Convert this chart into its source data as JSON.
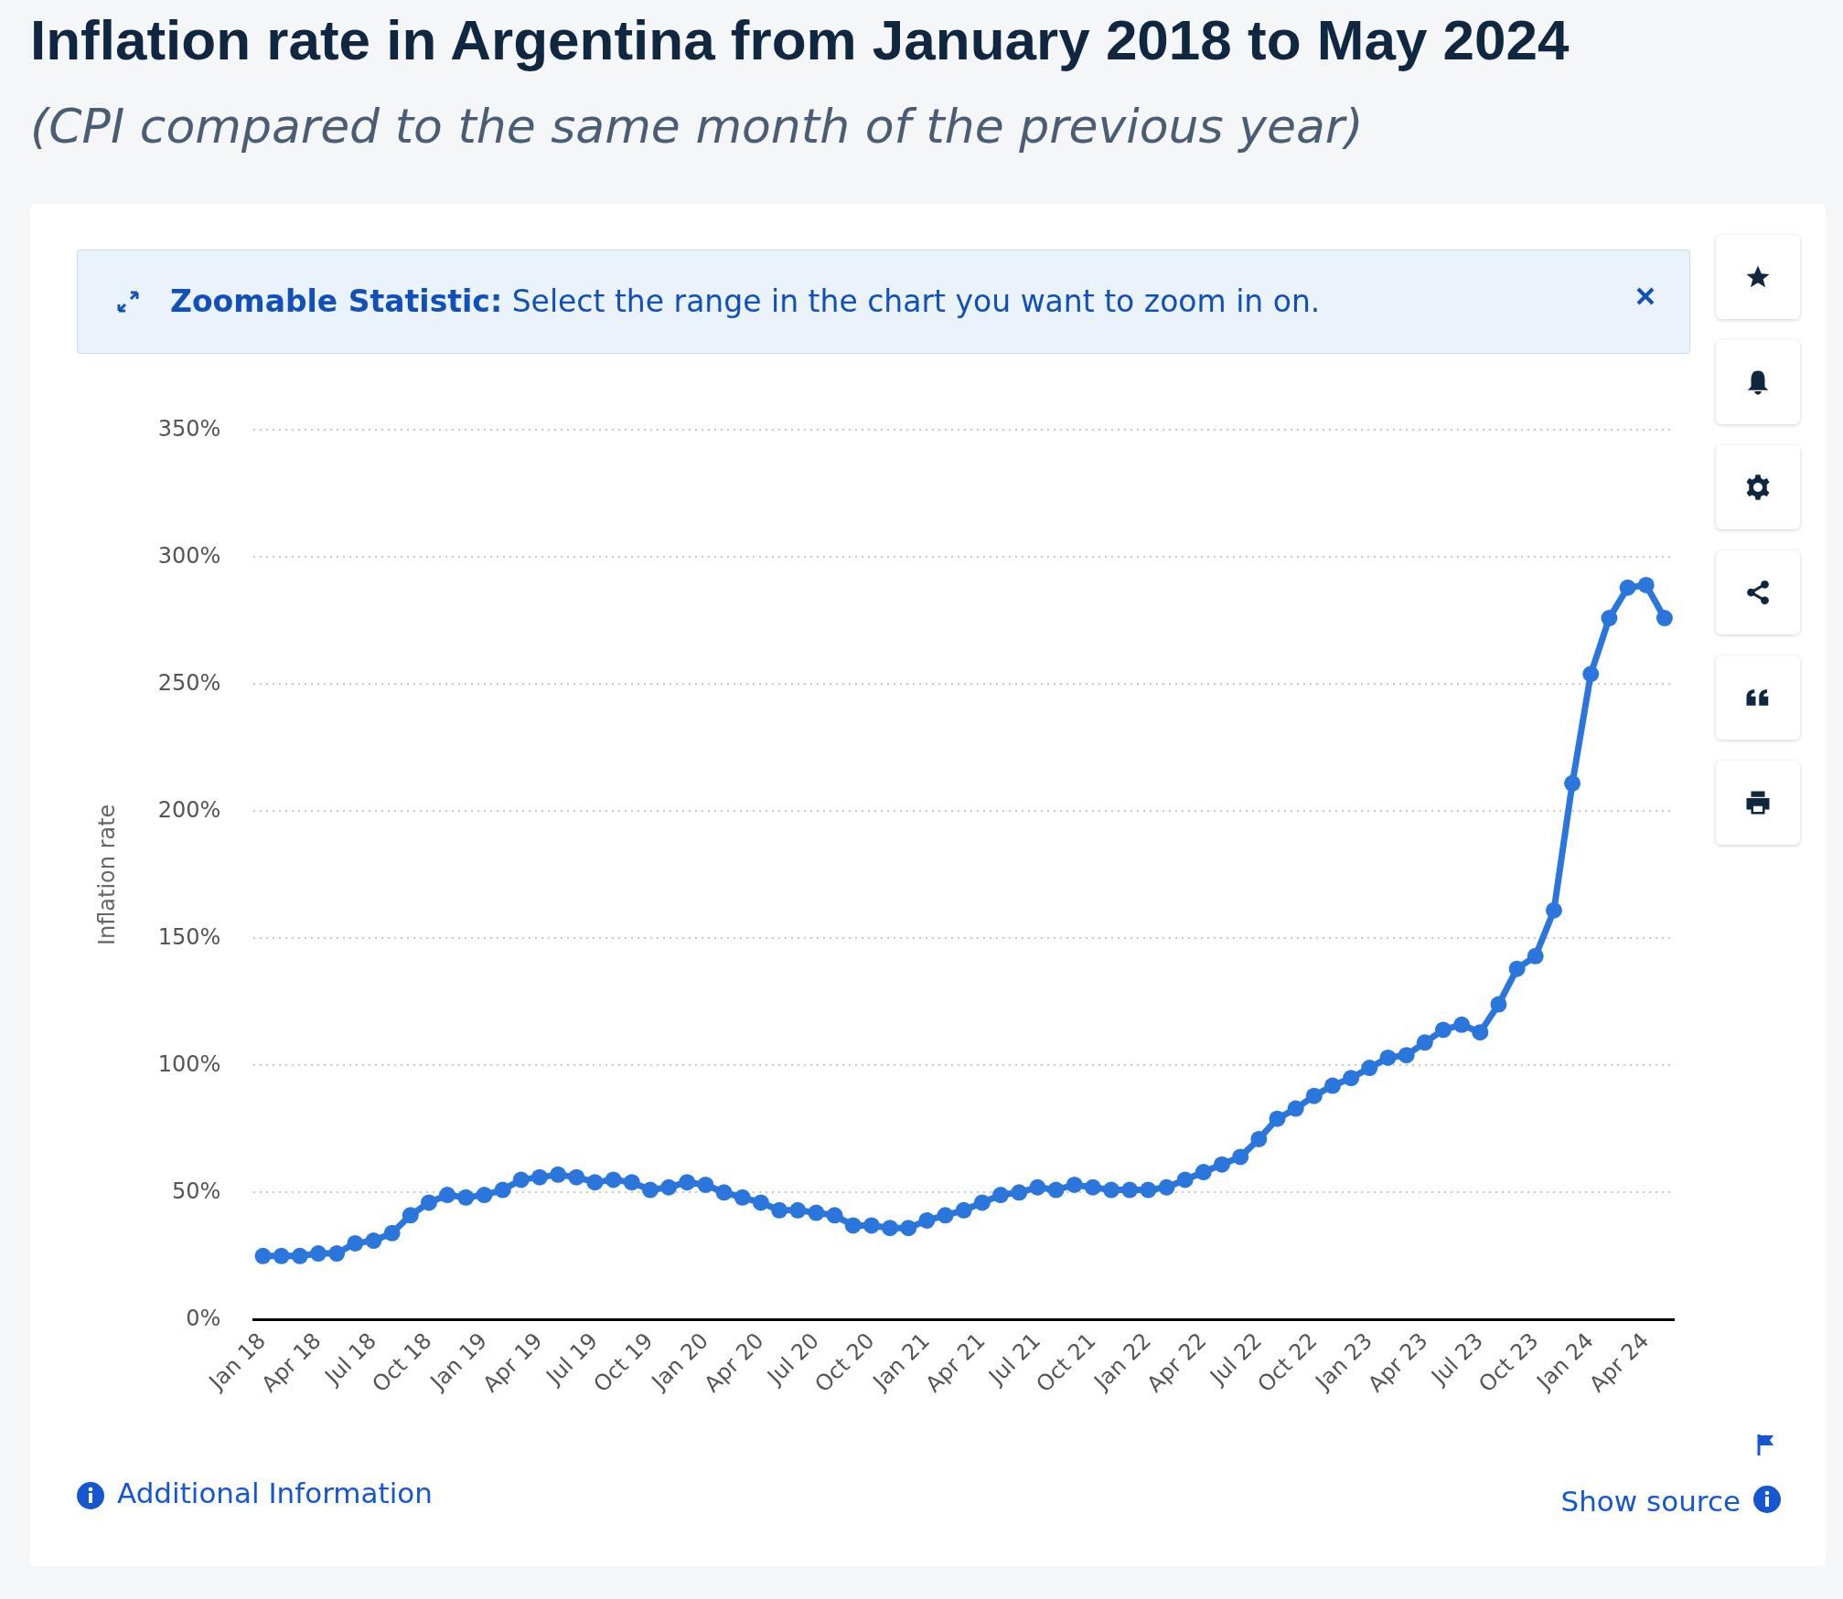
{
  "chart_data": {
    "type": "line",
    "title": "Inflation rate in Argentina from January 2018 to May 2024",
    "subtitle": "(CPI compared to the same month of the previous year)",
    "ylabel": "Inflation rate",
    "categories": [
      "Jan 18",
      null,
      null,
      "Apr 18",
      null,
      null,
      "Jul 18",
      null,
      null,
      "Oct 18",
      null,
      null,
      "Jan 19",
      null,
      null,
      "Apr 19",
      null,
      null,
      "Jul 19",
      null,
      null,
      "Oct 19",
      null,
      null,
      "Jan 20",
      null,
      null,
      "Apr 20",
      null,
      null,
      "Jul 20",
      null,
      null,
      "Oct 20",
      null,
      null,
      "Jan 21",
      null,
      null,
      "Apr 21",
      null,
      null,
      "Jul 21",
      null,
      null,
      "Oct 21",
      null,
      null,
      "Jan 22",
      null,
      null,
      "Apr 22",
      null,
      null,
      "Jul 22",
      null,
      null,
      "Oct 22",
      null,
      null,
      "Jan 23",
      null,
      null,
      "Apr 23",
      null,
      null,
      "Jul 23",
      null,
      null,
      "Oct 23",
      null,
      null,
      "Jan 24",
      null,
      null,
      "Apr 24",
      null
    ],
    "series": [
      {
        "color": "#2a76dd",
        "values": [
          25,
          25,
          25,
          26,
          26,
          30,
          31,
          34,
          41,
          46,
          49,
          48,
          49,
          51,
          55,
          56,
          57,
          56,
          54,
          55,
          54,
          51,
          52,
          54,
          53,
          50,
          48,
          46,
          43,
          43,
          42,
          41,
          37,
          37,
          36,
          36,
          39,
          41,
          43,
          46,
          49,
          50,
          52,
          51,
          53,
          52,
          51,
          51,
          51,
          52,
          55,
          58,
          61,
          64,
          71,
          79,
          83,
          88,
          92,
          95,
          99,
          103,
          104,
          109,
          114,
          116,
          113,
          124,
          138,
          143,
          161,
          211,
          254,
          276,
          288,
          289,
          276
        ]
      }
    ],
    "ylim": [
      0,
      350
    ],
    "yticks": [
      {
        "value": 0,
        "label": "0%"
      },
      {
        "value": 50,
        "label": "50%"
      },
      {
        "value": 100,
        "label": "100%"
      },
      {
        "value": 150,
        "label": "150%"
      },
      {
        "value": 200,
        "label": "200%"
      },
      {
        "value": 250,
        "label": "250%"
      },
      {
        "value": 300,
        "label": "300%"
      },
      {
        "value": 350,
        "label": "350%"
      }
    ],
    "grid": "y",
    "legend": false,
    "marker": "circle",
    "line_style": "solid",
    "annotations": [
      "Zoomable Statistic:",
      "Select the range in the chart you want to zoom in on.",
      "Additional Information",
      "Show source"
    ]
  }
}
